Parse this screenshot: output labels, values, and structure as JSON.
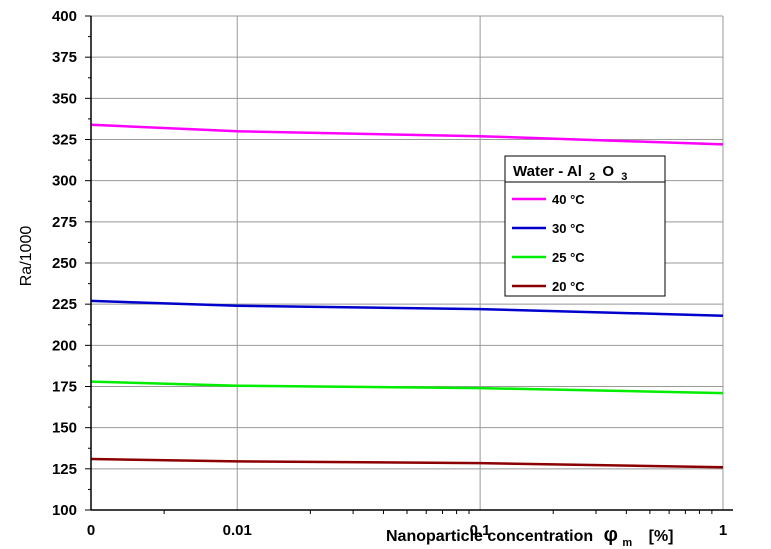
{
  "chart_data": {
    "type": "line",
    "title": "",
    "xlabel_main": "Nanoparticle concentration",
    "xlabel_symbol": "φ",
    "xlabel_sub": "m",
    "xlabel_unit": "[%]",
    "ylabel": "Ra/1000",
    "ylim": [
      100,
      400
    ],
    "yticks": [
      "100",
      "125",
      "150",
      "175",
      "200",
      "225",
      "250",
      "275",
      "300",
      "325",
      "350",
      "375",
      "400"
    ],
    "xticks": [
      "0",
      "0.01",
      "0.1",
      "1"
    ],
    "x_scale": "log (with 0 at left edge)",
    "grid": true,
    "legend": {
      "placement": "right-center",
      "title_main": "Water - Al",
      "title_sub1": "2",
      "title_mid": "O",
      "title_sub2": "3"
    },
    "x": [
      0,
      0.01,
      0.1,
      1
    ],
    "series": [
      {
        "name": "40 °C",
        "color": "#ff00ff",
        "values": [
          334,
          330,
          327,
          322
        ]
      },
      {
        "name": "30 °C",
        "color": "#0000cc",
        "values": [
          227,
          224,
          222,
          218
        ]
      },
      {
        "name": "25 °C",
        "color": "#00ee00",
        "values": [
          178,
          175.5,
          174,
          171
        ]
      },
      {
        "name": "20 °C",
        "color": "#8b0000",
        "values": [
          131,
          129.5,
          128.5,
          126
        ]
      }
    ]
  }
}
